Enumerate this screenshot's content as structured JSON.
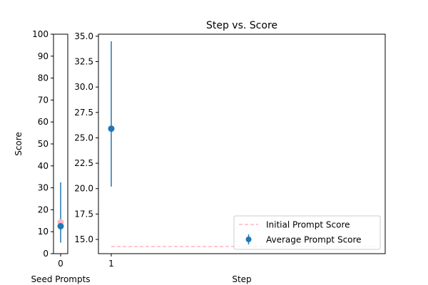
{
  "chart_data": [
    {
      "type": "scatter",
      "panel": "seed-prompts",
      "title": "",
      "xlabel": "Seed Prompts",
      "ylabel": "Score",
      "x_ticks": [
        "0"
      ],
      "ylim": [
        0,
        100
      ],
      "y_ticks": [
        "0",
        "10",
        "20",
        "30",
        "40",
        "50",
        "60",
        "70",
        "80",
        "90",
        "100"
      ],
      "series": [
        {
          "marker_color": "#1f77b4",
          "points": [
            {
              "x": 0,
              "y": 12.5,
              "yerr_low": 5,
              "yerr_high": 32.5
            }
          ]
        },
        {
          "marker_color": "#ffb6c1",
          "points": [
            {
              "x": 0,
              "y": 14.3
            }
          ]
        }
      ]
    },
    {
      "type": "scatter",
      "panel": "steps",
      "title": "Step vs. Score",
      "xlabel": "Step",
      "ylabel": "",
      "x_ticks": [
        "1"
      ],
      "ylim": [
        13.6,
        35.2
      ],
      "y_ticks": [
        "15.0",
        "17.5",
        "20.0",
        "22.5",
        "25.0",
        "27.5",
        "30.0",
        "32.5",
        "35.0"
      ],
      "series": [
        {
          "name": "Average Prompt Score",
          "color": "#1f77b4",
          "points": [
            {
              "x": 1,
              "y": 25.9,
              "yerr_low": 20.2,
              "yerr_high": 34.5
            }
          ]
        },
        {
          "name": "Initial Prompt Score",
          "color": "#ffb6c1",
          "style": "dashed",
          "y": 14.3
        }
      ],
      "legend": {
        "placement": "lower-right",
        "entries": [
          "Initial Prompt Score",
          "Average Prompt Score"
        ]
      }
    }
  ]
}
